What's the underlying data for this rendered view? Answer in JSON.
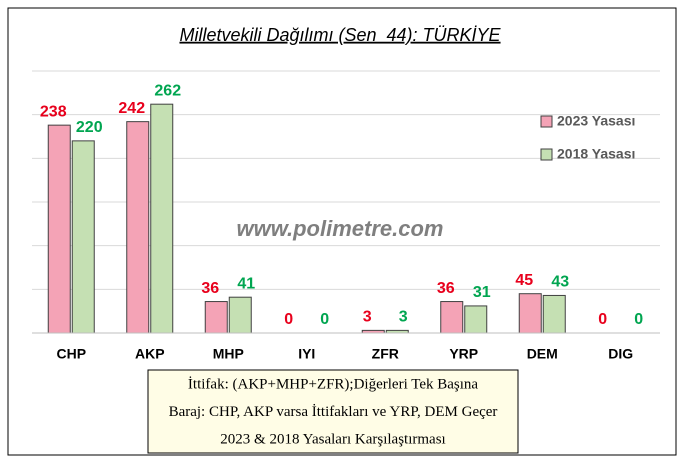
{
  "chart_data": {
    "type": "bar",
    "title": "Milletvekili Dağılımı (Sen_44): TÜRKİYE",
    "watermark": "www.polimetre.com",
    "categories": [
      "CHP",
      "AKP",
      "MHP",
      "IYI",
      "ZFR",
      "YRP",
      "DEM",
      "DIG"
    ],
    "series": [
      {
        "name": "2023 Yasası",
        "color": "#f4a3b6",
        "label_color": "#e8001c",
        "values": [
          238,
          242,
          36,
          0,
          3,
          36,
          45,
          0
        ]
      },
      {
        "name": "2018 Yasası",
        "color": "#c5e0b3",
        "label_color": "#00a550",
        "values": [
          220,
          262,
          41,
          0,
          3,
          31,
          43,
          0
        ]
      }
    ],
    "ylim": [
      0,
      300
    ],
    "yticks": [
      0,
      50,
      100,
      150,
      200,
      250,
      300
    ],
    "grid": true,
    "legend": "right",
    "notes": [
      "İttifak: (AKP+MHP+ZFR);Diğerleri Tek Başına",
      "Baraj: CHP, AKP varsa İttifakları ve YRP, DEM Geçer",
      "2023 & 2018 Yasaları Karşılaştırması"
    ]
  }
}
